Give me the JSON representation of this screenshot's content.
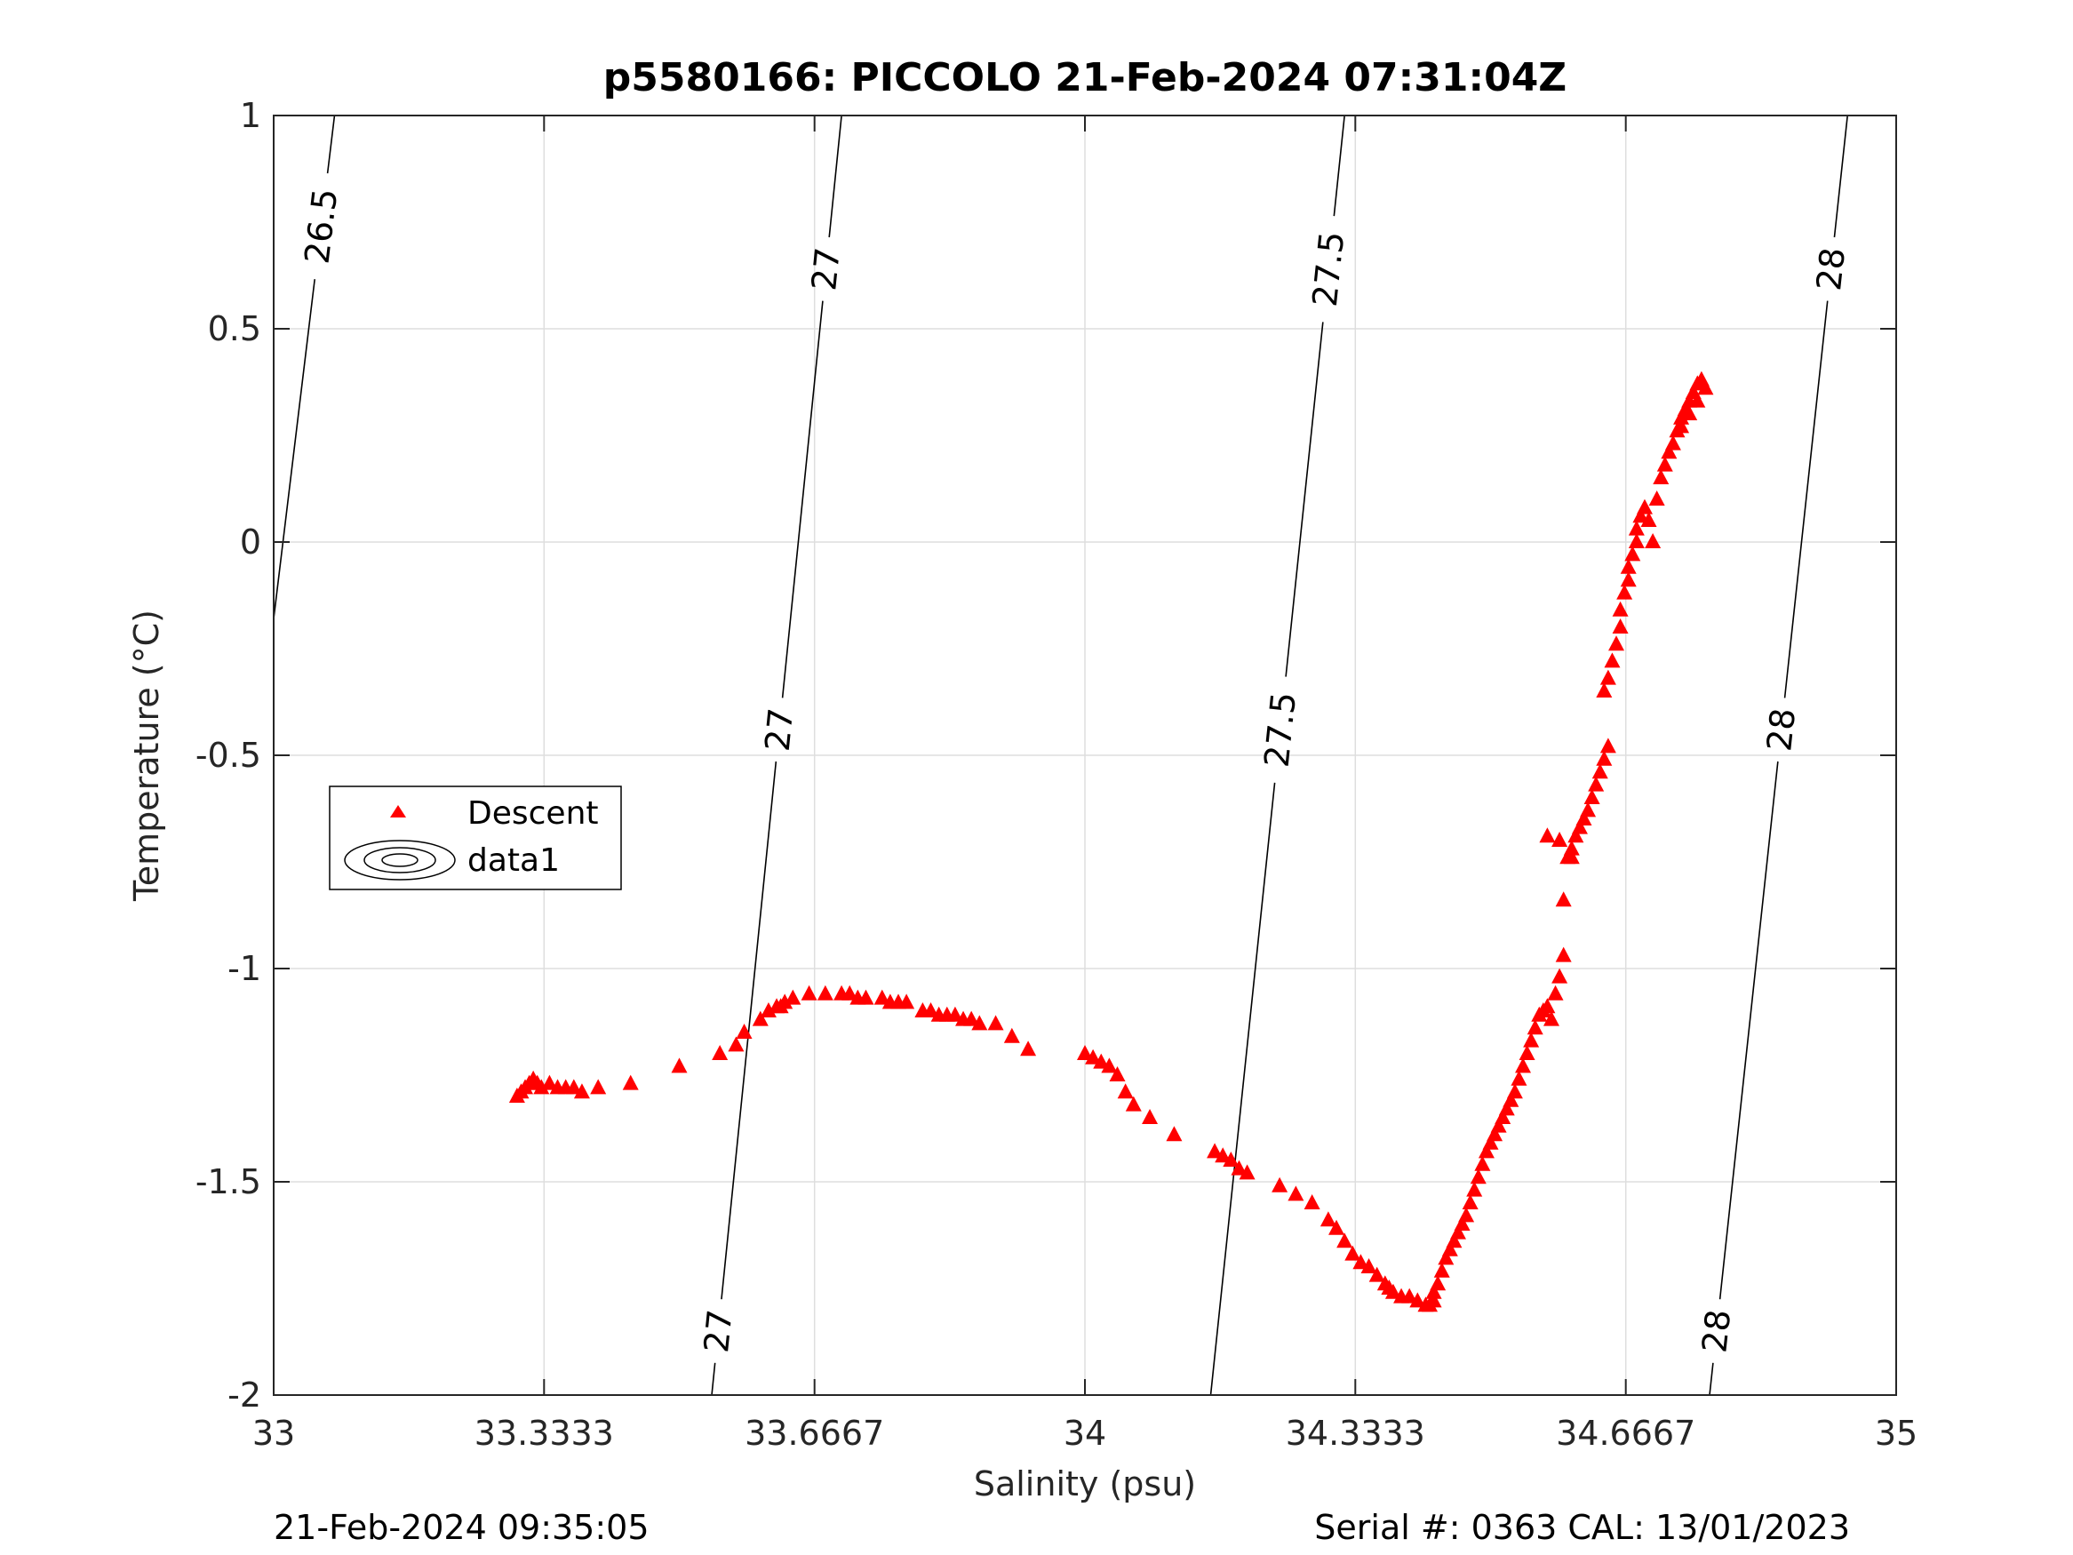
{
  "chart_data": {
    "type": "scatter",
    "title": "p5580166: PICCOLO 21-Feb-2024 07:31:04Z",
    "xlabel": "Salinity (psu)",
    "ylabel": "Temperature (°C)",
    "xlim": [
      33,
      35
    ],
    "ylim": [
      -2,
      1
    ],
    "xticks": [
      33,
      33.3333,
      33.6667,
      34,
      34.3333,
      34.6667,
      35
    ],
    "xtick_labels": [
      "33",
      "33.3333",
      "33.6667",
      "34",
      "34.3333",
      "34.6667",
      "35"
    ],
    "yticks": [
      -2,
      -1.5,
      -1,
      -0.5,
      0,
      0.5,
      1
    ],
    "ytick_labels": [
      "-2",
      "-1.5",
      "-1",
      "-0.5",
      "0",
      "0.5",
      "1"
    ],
    "grid": true,
    "legend_position": "left-middle",
    "series": [
      {
        "name": "Descent",
        "marker": "triangle",
        "color": "#ff0000",
        "points": [
          [
            33.3,
            -1.3
          ],
          [
            33.305,
            -1.29
          ],
          [
            33.31,
            -1.28
          ],
          [
            33.315,
            -1.27
          ],
          [
            33.32,
            -1.26
          ],
          [
            33.325,
            -1.27
          ],
          [
            33.33,
            -1.28
          ],
          [
            33.34,
            -1.27
          ],
          [
            33.35,
            -1.28
          ],
          [
            33.36,
            -1.28
          ],
          [
            33.37,
            -1.28
          ],
          [
            33.38,
            -1.29
          ],
          [
            33.4,
            -1.28
          ],
          [
            33.44,
            -1.27
          ],
          [
            33.5,
            -1.23
          ],
          [
            33.55,
            -1.2
          ],
          [
            33.57,
            -1.18
          ],
          [
            33.58,
            -1.15
          ],
          [
            33.6,
            -1.12
          ],
          [
            33.61,
            -1.1
          ],
          [
            33.62,
            -1.09
          ],
          [
            33.625,
            -1.09
          ],
          [
            33.63,
            -1.08
          ],
          [
            33.64,
            -1.07
          ],
          [
            33.66,
            -1.06
          ],
          [
            33.68,
            -1.06
          ],
          [
            33.7,
            -1.06
          ],
          [
            33.71,
            -1.06
          ],
          [
            33.72,
            -1.07
          ],
          [
            33.73,
            -1.07
          ],
          [
            33.75,
            -1.07
          ],
          [
            33.76,
            -1.08
          ],
          [
            33.77,
            -1.08
          ],
          [
            33.78,
            -1.08
          ],
          [
            33.8,
            -1.1
          ],
          [
            33.81,
            -1.1
          ],
          [
            33.82,
            -1.11
          ],
          [
            33.83,
            -1.11
          ],
          [
            33.84,
            -1.11
          ],
          [
            33.85,
            -1.12
          ],
          [
            33.86,
            -1.12
          ],
          [
            33.87,
            -1.13
          ],
          [
            33.89,
            -1.13
          ],
          [
            33.91,
            -1.16
          ],
          [
            33.93,
            -1.19
          ],
          [
            34.0,
            -1.2
          ],
          [
            34.01,
            -1.21
          ],
          [
            34.02,
            -1.22
          ],
          [
            34.03,
            -1.23
          ],
          [
            34.04,
            -1.25
          ],
          [
            34.05,
            -1.29
          ],
          [
            34.06,
            -1.32
          ],
          [
            34.08,
            -1.35
          ],
          [
            34.11,
            -1.39
          ],
          [
            34.16,
            -1.43
          ],
          [
            34.17,
            -1.44
          ],
          [
            34.18,
            -1.45
          ],
          [
            34.19,
            -1.47
          ],
          [
            34.2,
            -1.48
          ],
          [
            34.24,
            -1.51
          ],
          [
            34.26,
            -1.53
          ],
          [
            34.28,
            -1.55
          ],
          [
            34.3,
            -1.59
          ],
          [
            34.31,
            -1.61
          ],
          [
            34.32,
            -1.64
          ],
          [
            34.33,
            -1.67
          ],
          [
            34.34,
            -1.69
          ],
          [
            34.35,
            -1.7
          ],
          [
            34.36,
            -1.72
          ],
          [
            34.37,
            -1.74
          ],
          [
            34.375,
            -1.75
          ],
          [
            34.38,
            -1.76
          ],
          [
            34.39,
            -1.77
          ],
          [
            34.4,
            -1.77
          ],
          [
            34.41,
            -1.78
          ],
          [
            34.42,
            -1.79
          ],
          [
            34.425,
            -1.79
          ],
          [
            34.43,
            -1.78
          ],
          [
            34.43,
            -1.76
          ],
          [
            34.435,
            -1.74
          ],
          [
            34.44,
            -1.71
          ],
          [
            34.445,
            -1.68
          ],
          [
            34.45,
            -1.66
          ],
          [
            34.455,
            -1.64
          ],
          [
            34.46,
            -1.62
          ],
          [
            34.465,
            -1.6
          ],
          [
            34.47,
            -1.58
          ],
          [
            34.475,
            -1.55
          ],
          [
            34.48,
            -1.52
          ],
          [
            34.485,
            -1.49
          ],
          [
            34.49,
            -1.46
          ],
          [
            34.495,
            -1.43
          ],
          [
            34.5,
            -1.41
          ],
          [
            34.505,
            -1.39
          ],
          [
            34.51,
            -1.37
          ],
          [
            34.515,
            -1.35
          ],
          [
            34.52,
            -1.33
          ],
          [
            34.525,
            -1.31
          ],
          [
            34.53,
            -1.29
          ],
          [
            34.535,
            -1.26
          ],
          [
            34.54,
            -1.23
          ],
          [
            34.545,
            -1.2
          ],
          [
            34.55,
            -1.17
          ],
          [
            34.555,
            -1.14
          ],
          [
            34.56,
            -1.11
          ],
          [
            34.565,
            -1.1
          ],
          [
            34.57,
            -1.09
          ],
          [
            34.575,
            -1.12
          ],
          [
            34.58,
            -1.06
          ],
          [
            34.585,
            -1.02
          ],
          [
            34.59,
            -0.97
          ],
          [
            34.59,
            -0.84
          ],
          [
            34.595,
            -0.74
          ],
          [
            34.6,
            -0.72
          ],
          [
            34.605,
            -0.69
          ],
          [
            34.61,
            -0.67
          ],
          [
            34.615,
            -0.65
          ],
          [
            34.62,
            -0.63
          ],
          [
            34.625,
            -0.6
          ],
          [
            34.63,
            -0.57
          ],
          [
            34.635,
            -0.54
          ],
          [
            34.64,
            -0.51
          ],
          [
            34.645,
            -0.48
          ],
          [
            34.585,
            -0.7
          ],
          [
            34.6,
            -0.74
          ],
          [
            34.57,
            -0.69
          ],
          [
            34.64,
            -0.35
          ],
          [
            34.645,
            -0.32
          ],
          [
            34.65,
            -0.28
          ],
          [
            34.655,
            -0.24
          ],
          [
            34.66,
            -0.2
          ],
          [
            34.66,
            -0.16
          ],
          [
            34.665,
            -0.12
          ],
          [
            34.67,
            -0.09
          ],
          [
            34.67,
            -0.06
          ],
          [
            34.675,
            -0.03
          ],
          [
            34.68,
            0.0
          ],
          [
            34.68,
            0.03
          ],
          [
            34.685,
            0.06
          ],
          [
            34.69,
            0.08
          ],
          [
            34.695,
            0.05
          ],
          [
            34.7,
            0.0
          ],
          [
            34.705,
            0.1
          ],
          [
            34.71,
            0.15
          ],
          [
            34.715,
            0.18
          ],
          [
            34.72,
            0.21
          ],
          [
            34.725,
            0.23
          ],
          [
            34.73,
            0.26
          ],
          [
            34.735,
            0.29
          ],
          [
            34.74,
            0.31
          ],
          [
            34.745,
            0.33
          ],
          [
            34.75,
            0.35
          ],
          [
            34.755,
            0.37
          ],
          [
            34.76,
            0.38
          ],
          [
            34.765,
            0.36
          ],
          [
            34.755,
            0.33
          ],
          [
            34.745,
            0.3
          ],
          [
            34.735,
            0.27
          ]
        ]
      },
      {
        "name": "data1",
        "type": "contour",
        "color": "#000000",
        "levels": [
          {
            "label": "26.5",
            "line": [
              [
                33.0,
                -0.18
              ],
              [
                33.075,
                1.0
              ]
            ]
          },
          {
            "label": "27",
            "line": [
              [
                33.54,
                -2.0
              ],
              [
                33.7,
                1.0
              ]
            ]
          },
          {
            "label": "27.5",
            "line": [
              [
                34.155,
                -2.0
              ],
              [
                34.32,
                1.0
              ]
            ]
          },
          {
            "label": "28",
            "line": [
              [
                34.77,
                -2.0
              ],
              [
                34.94,
                1.0
              ]
            ]
          }
        ]
      }
    ]
  },
  "footer": {
    "timestamp": "21-Feb-2024 09:35:05",
    "serial": "Serial #: 0363  CAL: 13/01/2023"
  }
}
